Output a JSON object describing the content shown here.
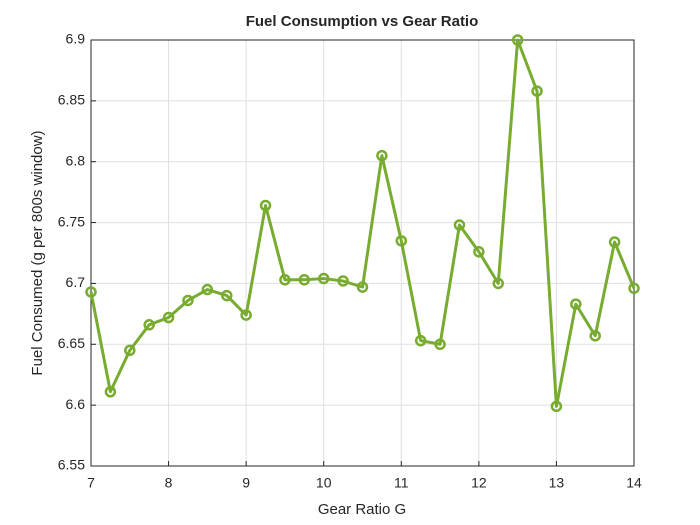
{
  "chart_data": {
    "type": "line",
    "title": "Fuel Consumption vs Gear Ratio",
    "x_label": "Gear Ratio G",
    "y_label": "Fuel Consumed (g per 800s window)",
    "x": [
      7,
      7.25,
      7.5,
      7.75,
      8,
      8.25,
      8.5,
      8.75,
      9,
      9.25,
      9.5,
      9.75,
      10,
      10.25,
      10.5,
      10.75,
      11,
      11.25,
      11.5,
      11.75,
      12,
      12.25,
      12.5,
      12.75,
      13,
      13.25,
      13.5,
      13.75,
      14
    ],
    "series": [
      {
        "name": "Fuel",
        "color": "#77ac30",
        "values": [
          6.693,
          6.611,
          6.645,
          6.666,
          6.672,
          6.686,
          6.695,
          6.69,
          6.674,
          6.764,
          6.703,
          6.703,
          6.704,
          6.702,
          6.697,
          6.805,
          6.735,
          6.653,
          6.65,
          6.748,
          6.726,
          6.7,
          6.9,
          6.858,
          6.599,
          6.683,
          6.657,
          6.734,
          6.696
        ]
      }
    ],
    "xlim": [
      7,
      14
    ],
    "xticks": [
      7,
      8,
      9,
      10,
      11,
      12,
      13,
      14
    ],
    "ylim": [
      6.55,
      6.9
    ],
    "yticks": [
      6.55,
      6.6,
      6.65,
      6.7,
      6.75,
      6.8,
      6.85,
      6.9
    ],
    "grid": true
  }
}
